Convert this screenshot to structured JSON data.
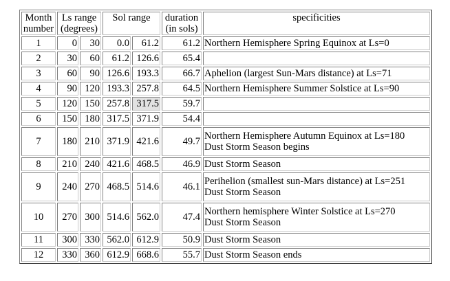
{
  "headers": {
    "month": [
      "Month",
      "number"
    ],
    "ls": [
      "Ls range",
      "(degrees)"
    ],
    "sol": "Sol range",
    "duration": [
      "duration",
      "(in sols)"
    ],
    "specificities": "specificities"
  },
  "rows": [
    {
      "month": "1",
      "ls_start": "0",
      "ls_end": "30",
      "sol_start": "0.0",
      "sol_end": "61.2",
      "duration": "61.2",
      "spec": [
        "Northern Hemisphere Spring Equinox at Ls=0"
      ]
    },
    {
      "month": "2",
      "ls_start": "30",
      "ls_end": "60",
      "sol_start": "61.2",
      "sol_end": "126.6",
      "duration": "65.4",
      "spec": []
    },
    {
      "month": "3",
      "ls_start": "60",
      "ls_end": "90",
      "sol_start": "126.6",
      "sol_end": "193.3",
      "duration": "66.7",
      "spec": [
        "Aphelion (largest Sun-Mars distance) at Ls=71"
      ]
    },
    {
      "month": "4",
      "ls_start": "90",
      "ls_end": "120",
      "sol_start": "193.3",
      "sol_end": "257.8",
      "duration": "64.5",
      "spec": [
        "Northern Hemisphere Summer Solstice at Ls=90"
      ]
    },
    {
      "month": "5",
      "ls_start": "120",
      "ls_end": "150",
      "sol_start": "257.8",
      "sol_end": "317.5",
      "duration": "59.7",
      "spec": []
    },
    {
      "month": "6",
      "ls_start": "150",
      "ls_end": "180",
      "sol_start": "317.5",
      "sol_end": "371.9",
      "duration": "54.4",
      "spec": []
    },
    {
      "month": "7",
      "ls_start": "180",
      "ls_end": "210",
      "sol_start": "371.9",
      "sol_end": "421.6",
      "duration": "49.7",
      "spec": [
        "Northern Hemisphere Autumn Equinox at Ls=180",
        "Dust Storm Season begins"
      ]
    },
    {
      "month": "8",
      "ls_start": "210",
      "ls_end": "240",
      "sol_start": "421.6",
      "sol_end": "468.5",
      "duration": "46.9",
      "spec": [
        "Dust Storm Season"
      ]
    },
    {
      "month": "9",
      "ls_start": "240",
      "ls_end": "270",
      "sol_start": "468.5",
      "sol_end": "514.6",
      "duration": "46.1",
      "spec": [
        "Perihelion (smallest sun-Mars distance) at Ls=251",
        "Dust Storm Season"
      ]
    },
    {
      "month": "10",
      "ls_start": "270",
      "ls_end": "300",
      "sol_start": "514.6",
      "sol_end": "562.0",
      "duration": "47.4",
      "spec": [
        "Northern hemisphere Winter Solstice at Ls=270",
        "Dust Storm Season"
      ]
    },
    {
      "month": "11",
      "ls_start": "300",
      "ls_end": "330",
      "sol_start": "562.0",
      "sol_end": "612.9",
      "duration": "50.9",
      "spec": [
        "Dust Storm Season"
      ]
    },
    {
      "month": "12",
      "ls_start": "330",
      "ls_end": "360",
      "sol_start": "612.9",
      "sol_end": "668.6",
      "duration": "55.7",
      "spec": [
        "Dust Storm Season ends"
      ]
    }
  ],
  "highlighted": {
    "row": 4,
    "field": "sol_end"
  }
}
